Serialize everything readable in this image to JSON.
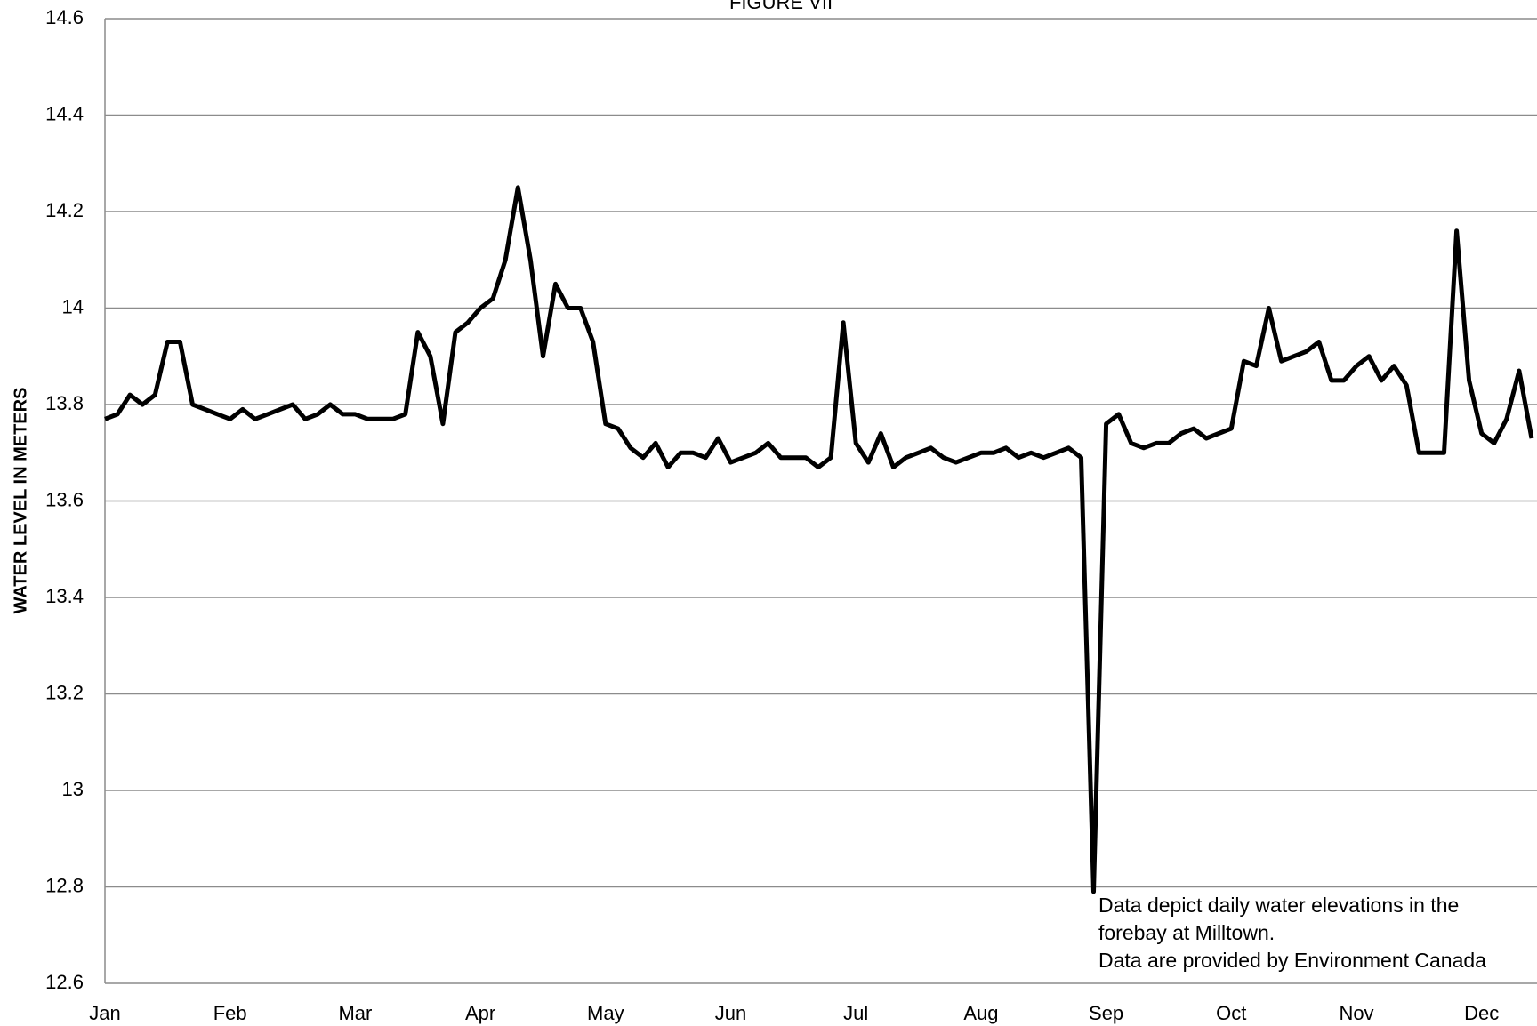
{
  "chart_data": {
    "type": "line",
    "title": "FIGURE VII",
    "y_label": "WATER LEVEL IN METERS",
    "annotation": [
      "Data depict daily water elevations in the",
      "forebay at Milltown.",
      "Data are provided by Environment Canada"
    ],
    "categories": [
      "Jan",
      null,
      null,
      null,
      null,
      null,
      null,
      null,
      null,
      null,
      "Feb",
      null,
      null,
      null,
      null,
      null,
      null,
      null,
      null,
      null,
      "Mar",
      null,
      null,
      null,
      null,
      null,
      null,
      null,
      null,
      null,
      "Apr",
      null,
      null,
      null,
      null,
      null,
      null,
      null,
      null,
      null,
      "May",
      null,
      null,
      null,
      null,
      null,
      null,
      null,
      null,
      null,
      "Jun",
      null,
      null,
      null,
      null,
      null,
      null,
      null,
      null,
      null,
      "Jul",
      null,
      null,
      null,
      null,
      null,
      null,
      null,
      null,
      null,
      "Aug",
      null,
      null,
      null,
      null,
      null,
      null,
      null,
      null,
      null,
      "Sep",
      null,
      null,
      null,
      null,
      null,
      null,
      null,
      null,
      null,
      "Oct",
      null,
      null,
      null,
      null,
      null,
      null,
      null,
      null,
      null,
      "Nov",
      null,
      null,
      null,
      null,
      null,
      null,
      null,
      null,
      null,
      "Dec",
      null,
      null,
      null,
      null
    ],
    "series": [
      {
        "color": "#000000",
        "values": [
          13.77,
          13.78,
          13.82,
          13.8,
          13.82,
          13.93,
          13.93,
          13.8,
          13.79,
          13.78,
          13.77,
          13.79,
          13.77,
          13.78,
          13.79,
          13.8,
          13.77,
          13.78,
          13.8,
          13.78,
          13.78,
          13.77,
          13.77,
          13.77,
          13.78,
          13.95,
          13.9,
          13.76,
          13.95,
          13.97,
          14.0,
          14.02,
          14.1,
          14.25,
          14.1,
          13.9,
          14.05,
          14.0,
          14.0,
          13.93,
          13.76,
          13.75,
          13.71,
          13.69,
          13.72,
          13.67,
          13.7,
          13.7,
          13.69,
          13.73,
          13.68,
          13.69,
          13.7,
          13.72,
          13.69,
          13.69,
          13.69,
          13.67,
          13.69,
          13.97,
          13.72,
          13.68,
          13.74,
          13.67,
          13.69,
          13.7,
          13.71,
          13.69,
          13.68,
          13.69,
          13.7,
          13.7,
          13.71,
          13.69,
          13.7,
          13.69,
          13.7,
          13.71,
          13.69,
          12.79,
          13.76,
          13.78,
          13.72,
          13.71,
          13.72,
          13.72,
          13.74,
          13.75,
          13.73,
          13.74,
          13.75,
          13.89,
          13.88,
          14.0,
          13.89,
          13.9,
          13.91,
          13.93,
          13.85,
          13.85,
          13.88,
          13.9,
          13.85,
          13.88,
          13.84,
          13.7,
          13.7,
          13.7,
          14.16,
          13.85,
          13.74,
          13.72,
          13.77,
          13.87,
          13.73
        ]
      }
    ],
    "ylim": [
      12.6,
      14.6
    ],
    "yticks": [
      12.6,
      12.8,
      13,
      13.2,
      13.4,
      13.6,
      13.8,
      14,
      14.2,
      14.4,
      14.6
    ],
    "grid": true
  }
}
